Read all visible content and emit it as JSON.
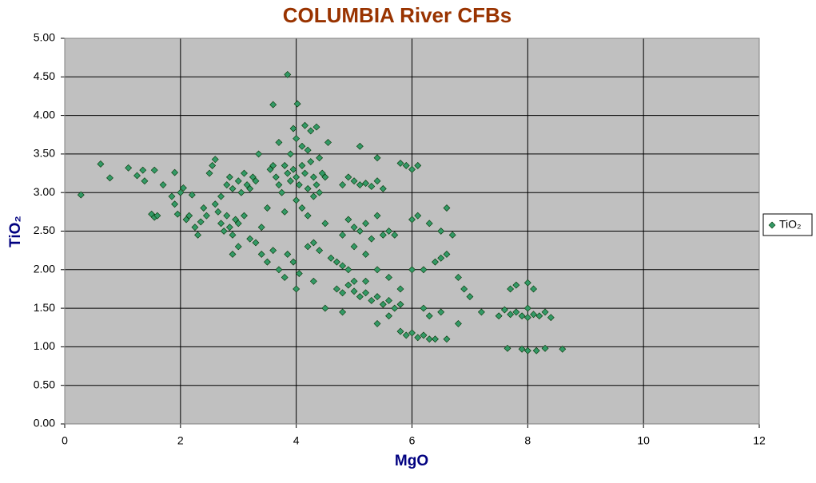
{
  "chart_data": {
    "type": "scatter",
    "title": "COLUMBIA River CFBs",
    "xlabel": "MgO",
    "ylabel": "TiO₂",
    "xlim": [
      0,
      12
    ],
    "xticks": [
      0,
      2,
      4,
      6,
      8,
      10,
      12
    ],
    "ylim": [
      0,
      5
    ],
    "yticks": [
      {
        "value": 0,
        "label": "0.00"
      },
      {
        "value": 0.5,
        "label": "0.50"
      },
      {
        "value": 1,
        "label": "1.00"
      },
      {
        "value": 1.5,
        "label": "1.50"
      },
      {
        "value": 2,
        "label": "2.00"
      },
      {
        "value": 2.5,
        "label": "2.50"
      },
      {
        "value": 3,
        "label": "3.00"
      },
      {
        "value": 3.5,
        "label": "3.50"
      },
      {
        "value": 4,
        "label": "4.00"
      },
      {
        "value": 4.5,
        "label": "4.50"
      },
      {
        "value": 5,
        "label": "5.00"
      }
    ],
    "grid": true,
    "legend": "right",
    "x": [
      0.28,
      0.62,
      0.78,
      1.1,
      1.25,
      1.35,
      1.38,
      1.55,
      1.5,
      1.55,
      1.6,
      1.7,
      1.9,
      1.85,
      1.9,
      1.95,
      2.0,
      2.05,
      2.1,
      2.15,
      2.2,
      2.25,
      2.3,
      2.35,
      2.4,
      2.45,
      2.5,
      2.55,
      2.6,
      2.6,
      2.65,
      2.7,
      2.75,
      2.8,
      2.85,
      2.9,
      2.95,
      3.0,
      2.7,
      2.8,
      2.85,
      2.9,
      3.0,
      3.05,
      3.1,
      3.15,
      3.2,
      3.25,
      3.3,
      3.35,
      3.1,
      3.2,
      3.3,
      3.4,
      3.5,
      3.6,
      3.7,
      3.8,
      2.9,
      3.0,
      3.4,
      3.55,
      3.6,
      3.65,
      3.7,
      3.75,
      3.8,
      3.85,
      3.9,
      3.95,
      4.0,
      4.05,
      4.1,
      4.15,
      4.2,
      4.25,
      4.3,
      4.35,
      4.4,
      4.45,
      4.5,
      3.85,
      3.6,
      4.02,
      3.95,
      4.15,
      4.25,
      4.35,
      3.7,
      4.0,
      4.1,
      3.9,
      4.2,
      4.55,
      4.4,
      4.0,
      4.1,
      4.2,
      4.3,
      3.8,
      3.5,
      4.5,
      3.85,
      3.95,
      4.05,
      4.0,
      4.2,
      4.3,
      4.4,
      4.3,
      4.5,
      4.6,
      4.7,
      4.8,
      4.9,
      4.7,
      4.8,
      4.9,
      5.0,
      5.1,
      5.2,
      5.3,
      5.4,
      5.5,
      5.6,
      5.7,
      5.8,
      5.0,
      5.2,
      4.8,
      5.4,
      5.6,
      4.8,
      4.9,
      5.0,
      5.1,
      5.2,
      5.3,
      5.4,
      5.5,
      5.6,
      5.7,
      5.0,
      5.2,
      5.4,
      5.6,
      5.8,
      4.8,
      4.9,
      5.0,
      5.1,
      5.2,
      5.3,
      5.4,
      5.5,
      5.1,
      5.4,
      5.8,
      5.9,
      6.0,
      6.1,
      6.0,
      6.1,
      6.3,
      6.5,
      6.7,
      6.6,
      6.0,
      6.2,
      6.4,
      6.5,
      6.6,
      6.8,
      7.0,
      6.9,
      6.2,
      6.3,
      6.5,
      5.8,
      5.9,
      6.0,
      6.1,
      6.2,
      6.3,
      6.4,
      6.6,
      6.8,
      7.2,
      7.5,
      7.6,
      7.7,
      7.8,
      7.9,
      8.0,
      8.1,
      8.2,
      8.3,
      8.4,
      7.7,
      7.8,
      8.0,
      8.1,
      7.65,
      7.9,
      8.0,
      8.15,
      8.3,
      8.6,
      8.0
    ],
    "series": [
      {
        "name": "TiO₂",
        "color": "#339966",
        "values": [
          2.97,
          3.37,
          3.19,
          3.32,
          3.22,
          3.29,
          3.15,
          3.29,
          2.72,
          2.68,
          2.7,
          3.1,
          3.26,
          2.95,
          2.85,
          2.72,
          3.0,
          3.06,
          2.65,
          2.7,
          2.97,
          2.55,
          2.45,
          2.62,
          2.8,
          2.7,
          3.25,
          3.35,
          3.43,
          2.85,
          2.75,
          2.6,
          2.5,
          2.7,
          2.55,
          2.45,
          2.65,
          2.6,
          2.95,
          3.1,
          3.2,
          3.05,
          3.15,
          3.0,
          3.25,
          3.1,
          3.05,
          3.2,
          3.15,
          3.5,
          2.7,
          2.4,
          2.35,
          2.2,
          2.1,
          2.25,
          2.0,
          1.9,
          2.2,
          2.3,
          2.55,
          3.3,
          3.35,
          3.2,
          3.1,
          3.0,
          3.35,
          3.25,
          3.15,
          3.3,
          3.2,
          3.1,
          3.35,
          3.25,
          3.05,
          3.4,
          3.2,
          3.1,
          3.0,
          3.25,
          3.2,
          4.53,
          4.14,
          4.15,
          3.83,
          3.87,
          3.8,
          3.85,
          3.65,
          3.7,
          3.6,
          3.5,
          3.55,
          3.65,
          3.45,
          2.9,
          2.8,
          2.7,
          2.95,
          2.75,
          2.8,
          2.6,
          2.2,
          2.1,
          1.95,
          1.75,
          2.3,
          2.35,
          2.25,
          1.85,
          1.5,
          2.15,
          2.1,
          2.05,
          2.0,
          1.75,
          1.7,
          1.8,
          1.72,
          1.65,
          1.7,
          1.6,
          1.65,
          1.55,
          1.6,
          1.5,
          1.55,
          1.85,
          1.85,
          1.45,
          1.3,
          1.4,
          2.45,
          2.65,
          2.55,
          2.5,
          2.6,
          2.4,
          2.7,
          2.45,
          2.5,
          2.45,
          2.3,
          2.2,
          2.0,
          1.9,
          1.75,
          3.1,
          3.2,
          3.15,
          3.1,
          3.12,
          3.08,
          3.15,
          3.05,
          3.6,
          3.45,
          3.38,
          3.35,
          3.3,
          3.35,
          2.65,
          2.7,
          2.6,
          2.5,
          2.45,
          2.8,
          2.0,
          2.0,
          2.1,
          2.15,
          2.2,
          1.9,
          1.65,
          1.75,
          1.5,
          1.4,
          1.45,
          1.2,
          1.15,
          1.18,
          1.12,
          1.15,
          1.1,
          1.1,
          1.1,
          1.3,
          1.45,
          1.4,
          1.48,
          1.42,
          1.45,
          1.4,
          1.38,
          1.42,
          1.4,
          1.45,
          1.38,
          1.75,
          1.8,
          1.83,
          1.75,
          0.98,
          0.97,
          0.95,
          0.95,
          0.98,
          0.97,
          1.5
        ]
      }
    ]
  }
}
